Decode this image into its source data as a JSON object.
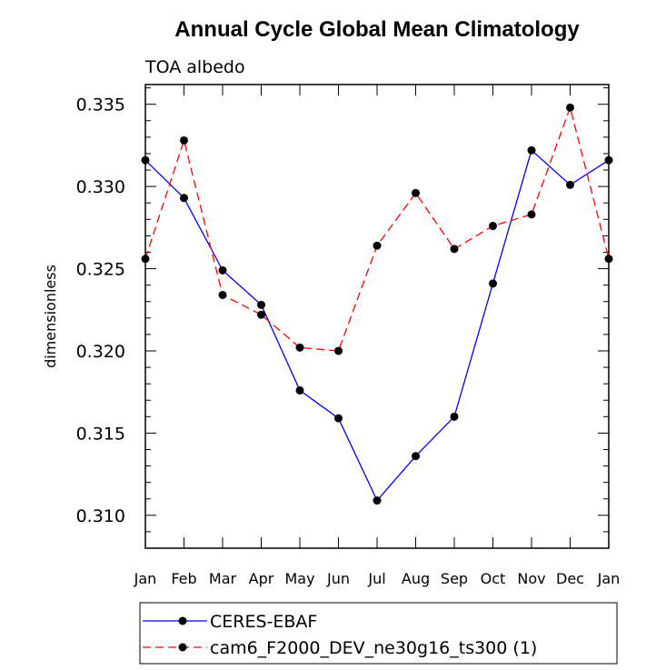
{
  "chart_data": {
    "type": "line",
    "title": "Annual Cycle Global Mean Climatology",
    "subtitle": "TOA albedo",
    "xlabel": "",
    "ylabel": "dimensionless",
    "categories": [
      "Jan",
      "Feb",
      "Mar",
      "Apr",
      "May",
      "Jun",
      "Jul",
      "Aug",
      "Sep",
      "Oct",
      "Nov",
      "Dec",
      "Jan"
    ],
    "ylim": [
      0.308,
      0.3362
    ],
    "yticks": [
      0.31,
      0.315,
      0.32,
      0.325,
      0.33,
      0.335
    ],
    "ytick_labels": [
      "0.310",
      "0.315",
      "0.320",
      "0.325",
      "0.330",
      "0.335"
    ],
    "grid": false,
    "legend_position": "bottom",
    "series": [
      {
        "name": "CERES-EBAF",
        "color": "#0000ff",
        "dash": "solid",
        "marker": "circle",
        "values": [
          0.3316,
          0.3293,
          0.3249,
          0.3228,
          0.3176,
          0.3159,
          0.3109,
          0.3136,
          0.316,
          0.3241,
          0.3322,
          0.3301,
          0.3316
        ]
      },
      {
        "name": "cam6_F2000_DEV_ne30g16_ts300 (1)",
        "color": "#ff0000",
        "dash": "dashed",
        "marker": "circle",
        "values": [
          0.3256,
          0.3328,
          0.3234,
          0.3222,
          0.3202,
          0.32,
          0.3264,
          0.3296,
          0.3262,
          0.3276,
          0.3283,
          0.3348,
          0.3256
        ]
      }
    ]
  }
}
